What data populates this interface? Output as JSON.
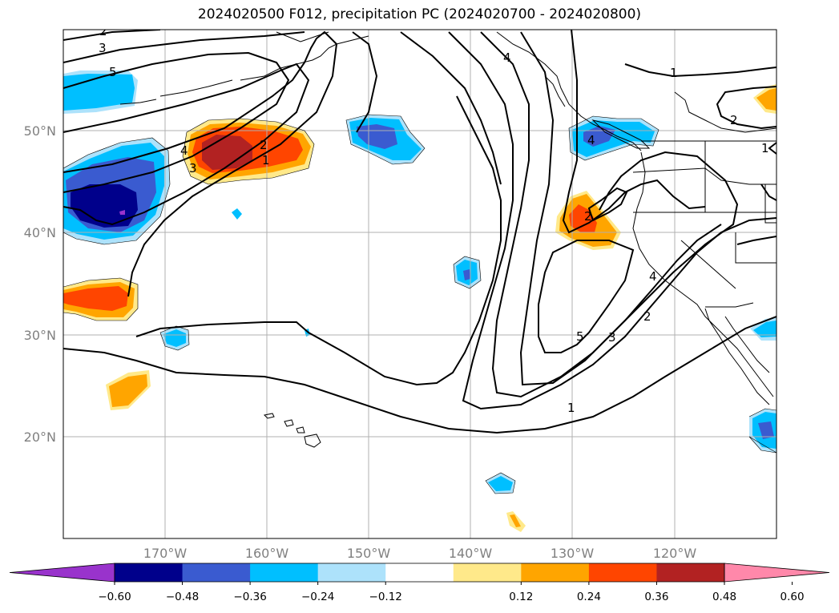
{
  "title": "2024020500 F012, precipitation PC (2024020700 - 2024020800)",
  "lat_labels": [
    "50°N",
    "40°N",
    "30°N",
    "20°N"
  ],
  "lon_labels": [
    "170°W",
    "160°W",
    "150°W",
    "140°W",
    "130°W",
    "120°W"
  ],
  "colorbar": {
    "colors": [
      "#9933cc",
      "#00008b",
      "#3a5bd0",
      "#00bfff",
      "#ade2fb",
      "#ffffff",
      "#ffe98a",
      "#ffa500",
      "#ff4500",
      "#b22222",
      "#ff88aa"
    ],
    "tick_labels": [
      "−0.60",
      "−0.48",
      "−0.36",
      "−0.24",
      "−0.12",
      "0.12",
      "0.24",
      "0.36",
      "0.48",
      "0.60"
    ]
  },
  "contour_labels": [
    "2",
    "3",
    "5",
    "4",
    "3",
    "2",
    "1",
    "4",
    "1",
    "2",
    "1",
    "4",
    "2",
    "4",
    "2",
    "3",
    "5",
    "1"
  ]
}
